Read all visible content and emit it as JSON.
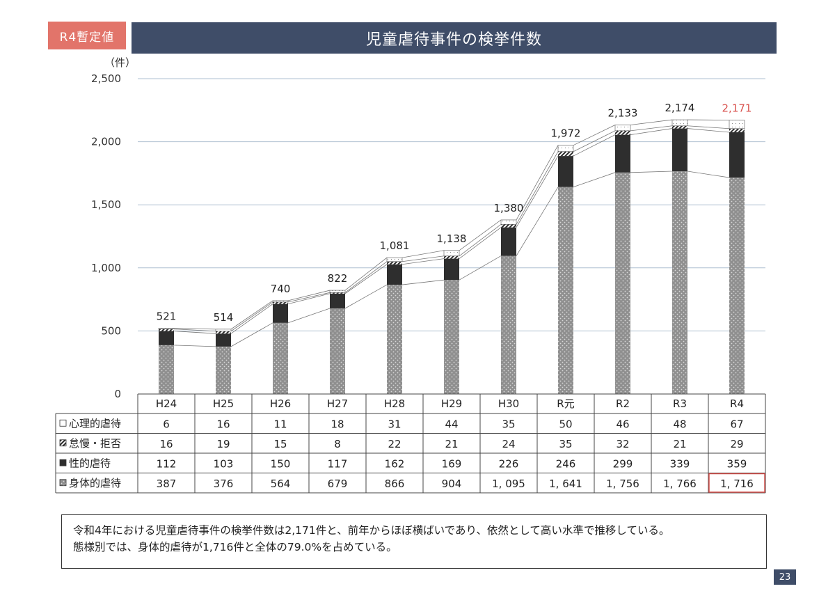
{
  "badge": "R4暫定値",
  "title": "児童虐待事件の検挙件数",
  "summary": {
    "line1": "令和4年における児童虐待事件の検挙件数は2,171件と、前年からほぼ横ばいであり、依然として高い水準で推移している。",
    "line2": "態様別では、身体的虐待が1,716件と全体の79.0%を占めている。"
  },
  "page_number": "23",
  "chart_data": {
    "type": "bar",
    "stacked": true,
    "unit_label": "（件）",
    "categories": [
      "H24",
      "H25",
      "H26",
      "H27",
      "H28",
      "H29",
      "H30",
      "R元",
      "R2",
      "R3",
      "R4"
    ],
    "ylim": [
      0,
      2500
    ],
    "y_ticks": [
      0,
      500,
      1000,
      1500,
      2000,
      2500
    ],
    "y_tick_labels": [
      "0",
      "500",
      "1,000",
      "1,500",
      "2,000",
      "2,500"
    ],
    "grid": true,
    "series": [
      {
        "name": "身体的虐待",
        "color": "#8a8a8a",
        "values": [
          387,
          376,
          564,
          679,
          866,
          904,
          1095,
          1641,
          1756,
          1766,
          1716
        ],
        "value_labels": [
          "387",
          "376",
          "564",
          "679",
          "866",
          "904",
          "1, 095",
          "1, 641",
          "1, 756",
          "1, 766",
          "1, 716"
        ]
      },
      {
        "name": "性的虐待",
        "color": "#2e2e2e",
        "values": [
          112,
          103,
          150,
          117,
          162,
          169,
          226,
          246,
          299,
          339,
          359
        ],
        "value_labels": [
          "112",
          "103",
          "150",
          "117",
          "162",
          "169",
          "226",
          "246",
          "299",
          "339",
          "359"
        ]
      },
      {
        "name": "怠慢・拒否",
        "color": "#555555",
        "values": [
          16,
          19,
          15,
          8,
          22,
          21,
          24,
          35,
          32,
          21,
          29
        ],
        "value_labels": [
          "16",
          "19",
          "15",
          "8",
          "22",
          "21",
          "24",
          "35",
          "32",
          "21",
          "29"
        ]
      },
      {
        "name": "心理的虐待",
        "color": "#ffffff",
        "values": [
          6,
          16,
          11,
          18,
          31,
          44,
          35,
          50,
          46,
          48,
          67
        ],
        "value_labels": [
          "6",
          "16",
          "11",
          "18",
          "31",
          "44",
          "35",
          "50",
          "46",
          "48",
          "67"
        ]
      }
    ],
    "table_row_order": [
      "心理的虐待",
      "怠慢・拒否",
      "性的虐待",
      "身体的虐待"
    ],
    "totals": [
      521,
      514,
      740,
      822,
      1081,
      1138,
      1380,
      1972,
      2133,
      2174,
      2171
    ],
    "total_labels": [
      "521",
      "514",
      "740",
      "822",
      "1,081",
      "1,138",
      "1,380",
      "1,972",
      "2,133",
      "2,174",
      "2,171"
    ],
    "highlight_color": "#d9534f",
    "highlight_index": 10
  }
}
